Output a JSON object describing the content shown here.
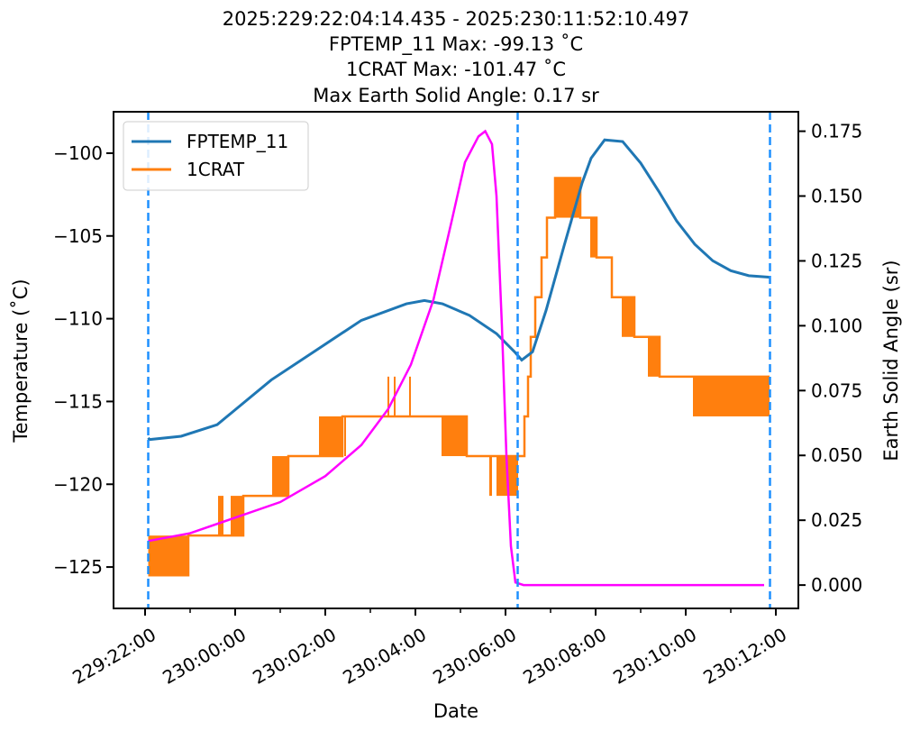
{
  "chart_data": {
    "type": "line",
    "title_lines": [
      "2025:229:22:04:14.435 - 2025:230:11:52:10.497",
      "FPTEMP_11 Max: -99.13 ˚C",
      "1CRAT Max: -101.47 ˚C",
      "Max Earth Solid Angle: 0.17 sr"
    ],
    "xlabel": "Date",
    "ylabel": "Temperature ($^\\circ$C)",
    "ylabel_display": "Temperature (˚C)",
    "y2label": "Earth Solid Angle (sr)",
    "x_unit": "hours since 229:22:00",
    "xlim": [
      -0.7,
      14.5
    ],
    "ylim": [
      -127.5,
      -97.5
    ],
    "y2lim": [
      -0.009,
      0.1825
    ],
    "x_ticks": [
      {
        "h": 0,
        "label": "229:22:00"
      },
      {
        "h": 2,
        "label": "230:00:00"
      },
      {
        "h": 4,
        "label": "230:02:00"
      },
      {
        "h": 6,
        "label": "230:04:00"
      },
      {
        "h": 8,
        "label": "230:06:00"
      },
      {
        "h": 10,
        "label": "230:08:00"
      },
      {
        "h": 12,
        "label": "230:10:00"
      },
      {
        "h": 14,
        "label": "230:12:00"
      }
    ],
    "x_minor_ticks": [
      1,
      3,
      5,
      7,
      9,
      11,
      13
    ],
    "y_ticks": [
      -125,
      -120,
      -115,
      -110,
      -105,
      -100
    ],
    "y_tick_labels": [
      "−125",
      "−120",
      "−115",
      "−110",
      "−105",
      "−100"
    ],
    "y2_ticks": [
      0,
      0.025,
      0.05,
      0.075,
      0.1,
      0.125,
      0.15,
      0.175
    ],
    "y2_tick_labels": [
      "0.000",
      "0.025",
      "0.050",
      "0.075",
      "0.100",
      "0.125",
      "0.150",
      "0.175"
    ],
    "vlines": [
      0.07,
      8.27,
      13.87
    ],
    "legend": {
      "position": "top-left",
      "entries": [
        "FPTEMP_11",
        "1CRAT"
      ]
    },
    "colors": {
      "FPTEMP_11": "#1f77b4",
      "1CRAT": "#ff7f0e",
      "earth": "#ff00ff",
      "vline": "#1e90ff"
    },
    "series": [
      {
        "name": "FPTEMP_11",
        "axis": "left",
        "x": [
          0.07,
          0.1,
          0.8,
          1.6,
          2.0,
          2.8,
          3.8,
          4.8,
          5.8,
          6.2,
          6.6,
          7.2,
          7.8,
          8.2,
          8.36,
          8.6,
          8.9,
          9.3,
          9.7,
          9.9,
          10.2,
          10.6,
          11.0,
          11.4,
          11.8,
          12.2,
          12.6,
          13.0,
          13.4,
          13.88
        ],
        "y": [
          -117.2,
          -117.3,
          -117.1,
          -116.4,
          -115.5,
          -113.7,
          -111.9,
          -110.1,
          -109.1,
          -108.9,
          -109.1,
          -109.8,
          -110.9,
          -112.0,
          -112.5,
          -112.0,
          -109.5,
          -105.6,
          -101.8,
          -100.3,
          -99.2,
          -99.3,
          -100.6,
          -102.3,
          -104.1,
          -105.5,
          -106.5,
          -107.1,
          -107.4,
          -107.5
        ]
      },
      {
        "name": "Earth Solid Angle",
        "axis": "right",
        "x": [
          0.07,
          1.0,
          2.0,
          3.0,
          4.0,
          4.8,
          5.4,
          5.9,
          6.4,
          6.8,
          7.1,
          7.4,
          7.55,
          7.7,
          7.8,
          7.92,
          8.02,
          8.12,
          8.22,
          8.4,
          13.74
        ],
        "y": [
          0.017,
          0.02,
          0.026,
          0.032,
          0.042,
          0.054,
          0.068,
          0.085,
          0.11,
          0.14,
          0.163,
          0.173,
          0.175,
          0.17,
          0.15,
          0.1,
          0.05,
          0.015,
          0.001,
          0.0,
          0.0
        ]
      },
      {
        "name": "1CRAT",
        "axis": "left",
        "type": "step",
        "segments": [
          [
            0.07,
            0.96,
            -125.5,
            -123.1
          ],
          [
            0.96,
            1.62,
            -123.1,
            null
          ],
          [
            1.62,
            1.74,
            -123.1,
            -120.7
          ],
          [
            1.74,
            1.9,
            -123.1,
            null
          ],
          [
            1.9,
            2.18,
            -123.1,
            -120.7
          ],
          [
            2.18,
            2.82,
            -120.7,
            null
          ],
          [
            2.82,
            3.18,
            -120.7,
            -118.3
          ],
          [
            3.18,
            3.86,
            -118.3,
            null
          ],
          [
            3.86,
            4.38,
            -118.3,
            -115.9
          ],
          [
            4.38,
            4.42,
            -115.9,
            null
          ],
          [
            4.42,
            4.46,
            -115.9,
            -118.3
          ],
          [
            4.46,
            5.38,
            -115.9,
            null
          ],
          [
            5.38,
            5.42,
            -115.9,
            -113.5
          ],
          [
            5.42,
            5.52,
            -115.9,
            null
          ],
          [
            5.52,
            5.56,
            -115.9,
            -113.5
          ],
          [
            5.56,
            5.86,
            -115.9,
            null
          ],
          [
            5.86,
            5.9,
            -115.9,
            -113.5
          ],
          [
            5.9,
            6.58,
            -115.9,
            null
          ],
          [
            6.58,
            7.14,
            -115.9,
            -118.3
          ],
          [
            7.14,
            7.64,
            -118.3,
            null
          ],
          [
            7.64,
            7.7,
            -118.3,
            -120.7
          ],
          [
            7.7,
            7.8,
            -118.3,
            null
          ],
          [
            7.8,
            8.28,
            -118.3,
            -120.7
          ],
          [
            8.28,
            8.42,
            -118.3,
            null
          ],
          [
            8.42,
            8.5,
            -115.9,
            null
          ],
          [
            8.5,
            8.56,
            -113.5,
            null
          ],
          [
            8.56,
            8.66,
            -111.1,
            null
          ],
          [
            8.66,
            8.8,
            -108.7,
            null
          ],
          [
            8.8,
            8.92,
            -106.3,
            null
          ],
          [
            8.92,
            9.1,
            -103.9,
            null
          ],
          [
            9.1,
            9.66,
            -101.5,
            -103.9
          ],
          [
            9.66,
            9.88,
            -103.9,
            null
          ],
          [
            9.88,
            10.02,
            -103.9,
            -106.3
          ],
          [
            10.02,
            10.36,
            -106.3,
            null
          ],
          [
            10.36,
            10.58,
            -108.7,
            null
          ],
          [
            10.58,
            10.86,
            -108.7,
            -111.1
          ],
          [
            10.86,
            11.16,
            -111.1,
            null
          ],
          [
            11.16,
            11.42,
            -111.1,
            -113.5
          ],
          [
            11.42,
            12.16,
            -113.5,
            null
          ],
          [
            12.16,
            13.86,
            -113.5,
            -115.9
          ]
        ]
      }
    ]
  }
}
